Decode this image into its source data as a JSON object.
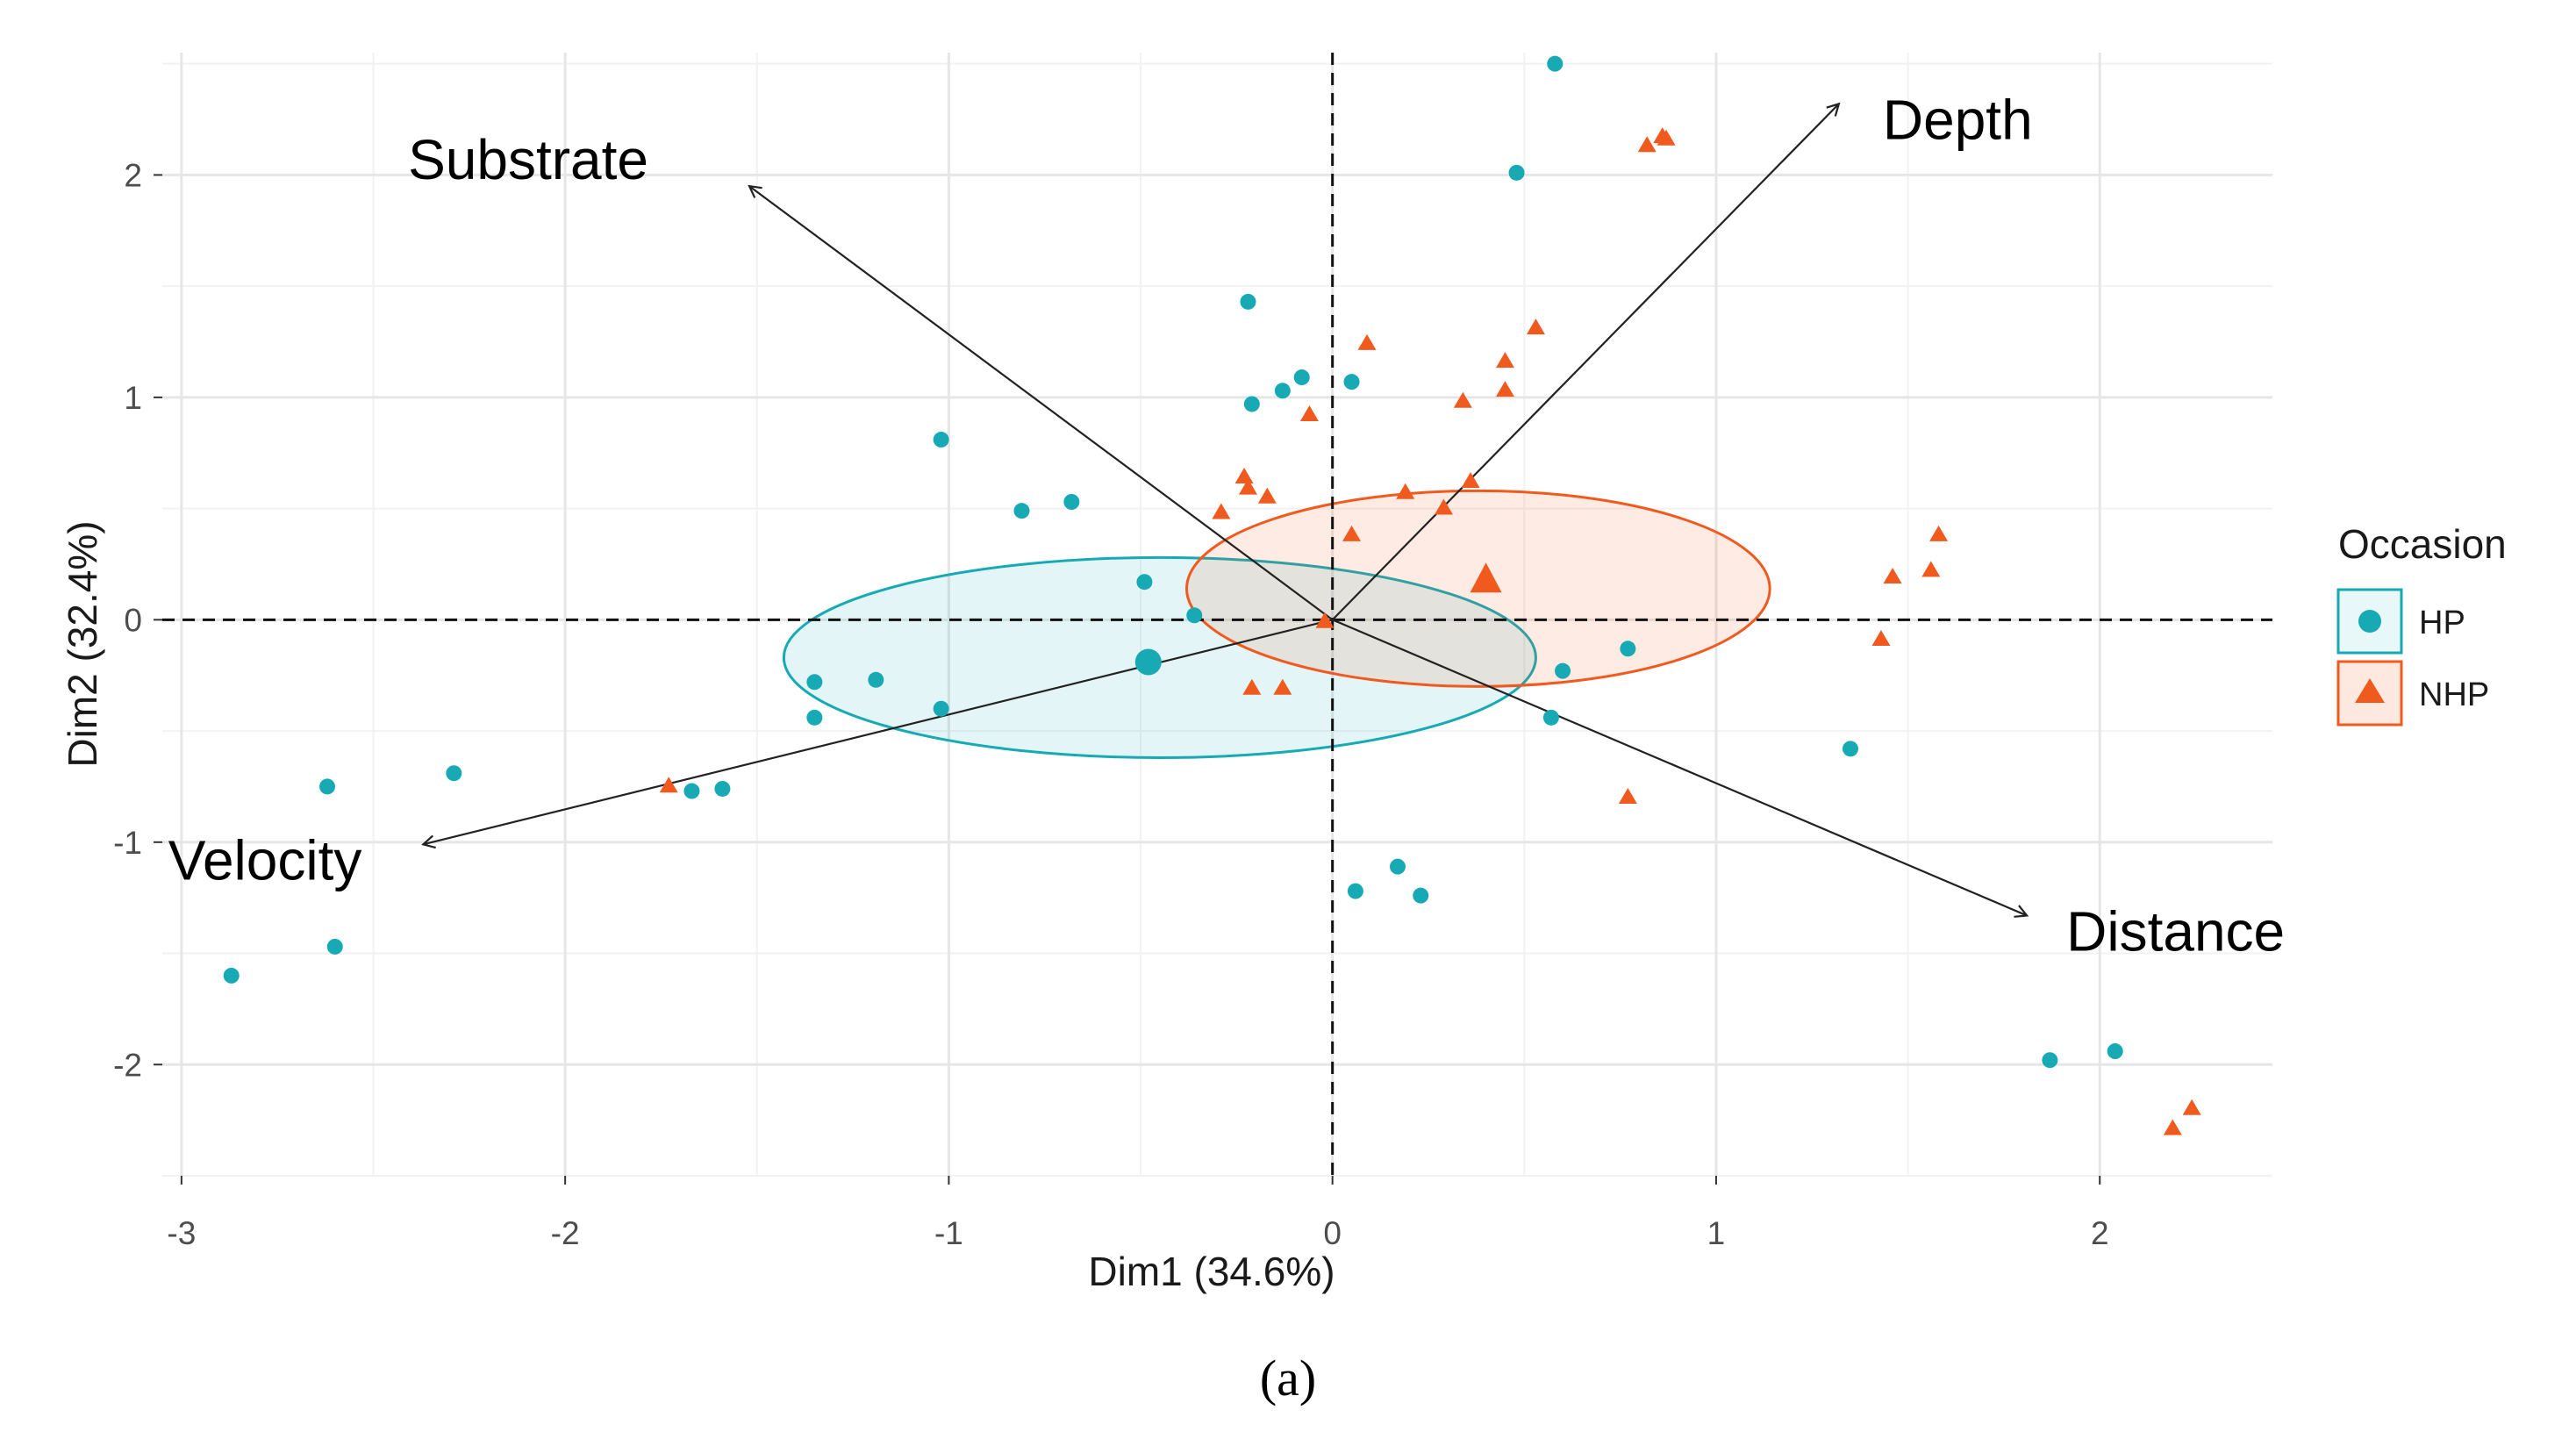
{
  "caption": "(a)",
  "chart_data": {
    "type": "scatter",
    "title": "",
    "xlabel": "Dim1 (34.6%)",
    "ylabel": "Dim2 (32.4%)",
    "xlim": [
      -3.05,
      2.45
    ],
    "ylim": [
      -2.5,
      2.55
    ],
    "xticks": [
      -3,
      -2,
      -1,
      0,
      1,
      2
    ],
    "yticks": [
      -2,
      -1,
      0,
      1,
      2
    ],
    "xtick_labels": [
      "-3",
      "-2",
      "-1",
      "0",
      "1",
      "2"
    ],
    "ytick_labels": [
      "-2",
      "-1",
      "0",
      "1",
      "2"
    ],
    "grid": true,
    "reference_lines": {
      "x": 0,
      "y": 0,
      "style": "dashed"
    },
    "legend": {
      "title": "Occasion",
      "placement": "right",
      "entries": [
        "HP",
        "NHP"
      ]
    },
    "colors": {
      "HP": "#18aab4",
      "NHP": "#f05a1e"
    },
    "series": [
      {
        "name": "HP",
        "marker": "circle",
        "points": [
          [
            0.58,
            2.5
          ],
          [
            0.48,
            2.01
          ],
          [
            -0.22,
            1.43
          ],
          [
            -0.08,
            1.09
          ],
          [
            -0.13,
            1.03
          ],
          [
            -0.21,
            0.97
          ],
          [
            0.05,
            1.07
          ],
          [
            -1.02,
            0.81
          ],
          [
            -0.81,
            0.49
          ],
          [
            -0.68,
            0.53
          ],
          [
            -0.49,
            0.17
          ],
          [
            -0.36,
            0.02
          ],
          [
            -1.35,
            -0.28
          ],
          [
            -1.19,
            -0.27
          ],
          [
            -1.35,
            -0.44
          ],
          [
            -1.02,
            -0.4
          ],
          [
            0.6,
            -0.23
          ],
          [
            0.77,
            -0.13
          ],
          [
            0.57,
            -0.44
          ],
          [
            -2.29,
            -0.69
          ],
          [
            -2.62,
            -0.75
          ],
          [
            -1.67,
            -0.77
          ],
          [
            -1.59,
            -0.76
          ],
          [
            1.35,
            -0.58
          ],
          [
            0.06,
            -1.22
          ],
          [
            0.17,
            -1.11
          ],
          [
            0.23,
            -1.24
          ],
          [
            -2.6,
            -1.47
          ],
          [
            -2.87,
            -1.6
          ],
          [
            1.87,
            -1.98
          ],
          [
            2.04,
            -1.94
          ]
        ],
        "centroid": [
          -0.48,
          -0.19
        ],
        "ellipse": {
          "center": [
            -0.45,
            -0.17
          ],
          "rx": 0.98,
          "ry": 0.45
        }
      },
      {
        "name": "NHP",
        "marker": "triangle",
        "points": [
          [
            0.82,
            2.13
          ],
          [
            0.86,
            2.17
          ],
          [
            0.87,
            2.16
          ],
          [
            0.09,
            1.24
          ],
          [
            0.53,
            1.31
          ],
          [
            0.45,
            1.16
          ],
          [
            0.45,
            1.03
          ],
          [
            0.34,
            0.98
          ],
          [
            -0.06,
            0.92
          ],
          [
            -0.23,
            0.64
          ],
          [
            -0.22,
            0.59
          ],
          [
            -0.17,
            0.55
          ],
          [
            -0.29,
            0.48
          ],
          [
            0.19,
            0.57
          ],
          [
            0.29,
            0.5
          ],
          [
            0.36,
            0.62
          ],
          [
            0.05,
            0.38
          ],
          [
            1.58,
            0.38
          ],
          [
            1.46,
            0.19
          ],
          [
            1.56,
            0.22
          ],
          [
            1.43,
            -0.09
          ],
          [
            -0.21,
            -0.31
          ],
          [
            -0.13,
            -0.31
          ],
          [
            0.77,
            -0.8
          ],
          [
            -1.73,
            -0.75
          ],
          [
            2.24,
            -2.2
          ],
          [
            2.19,
            -2.29
          ],
          [
            -0.02,
            -0.01
          ]
        ],
        "centroid": [
          0.4,
          0.17
        ],
        "ellipse": {
          "center": [
            0.38,
            0.14
          ],
          "rx": 0.76,
          "ry": 0.44
        }
      }
    ],
    "variables": [
      {
        "name": "Depth",
        "x": 1.32,
        "y": 2.32
      },
      {
        "name": "Substrate",
        "x": -1.52,
        "y": 1.95
      },
      {
        "name": "Velocity",
        "x": -2.37,
        "y": -1.01
      },
      {
        "name": "Distance",
        "x": 1.81,
        "y": -1.33
      }
    ]
  }
}
